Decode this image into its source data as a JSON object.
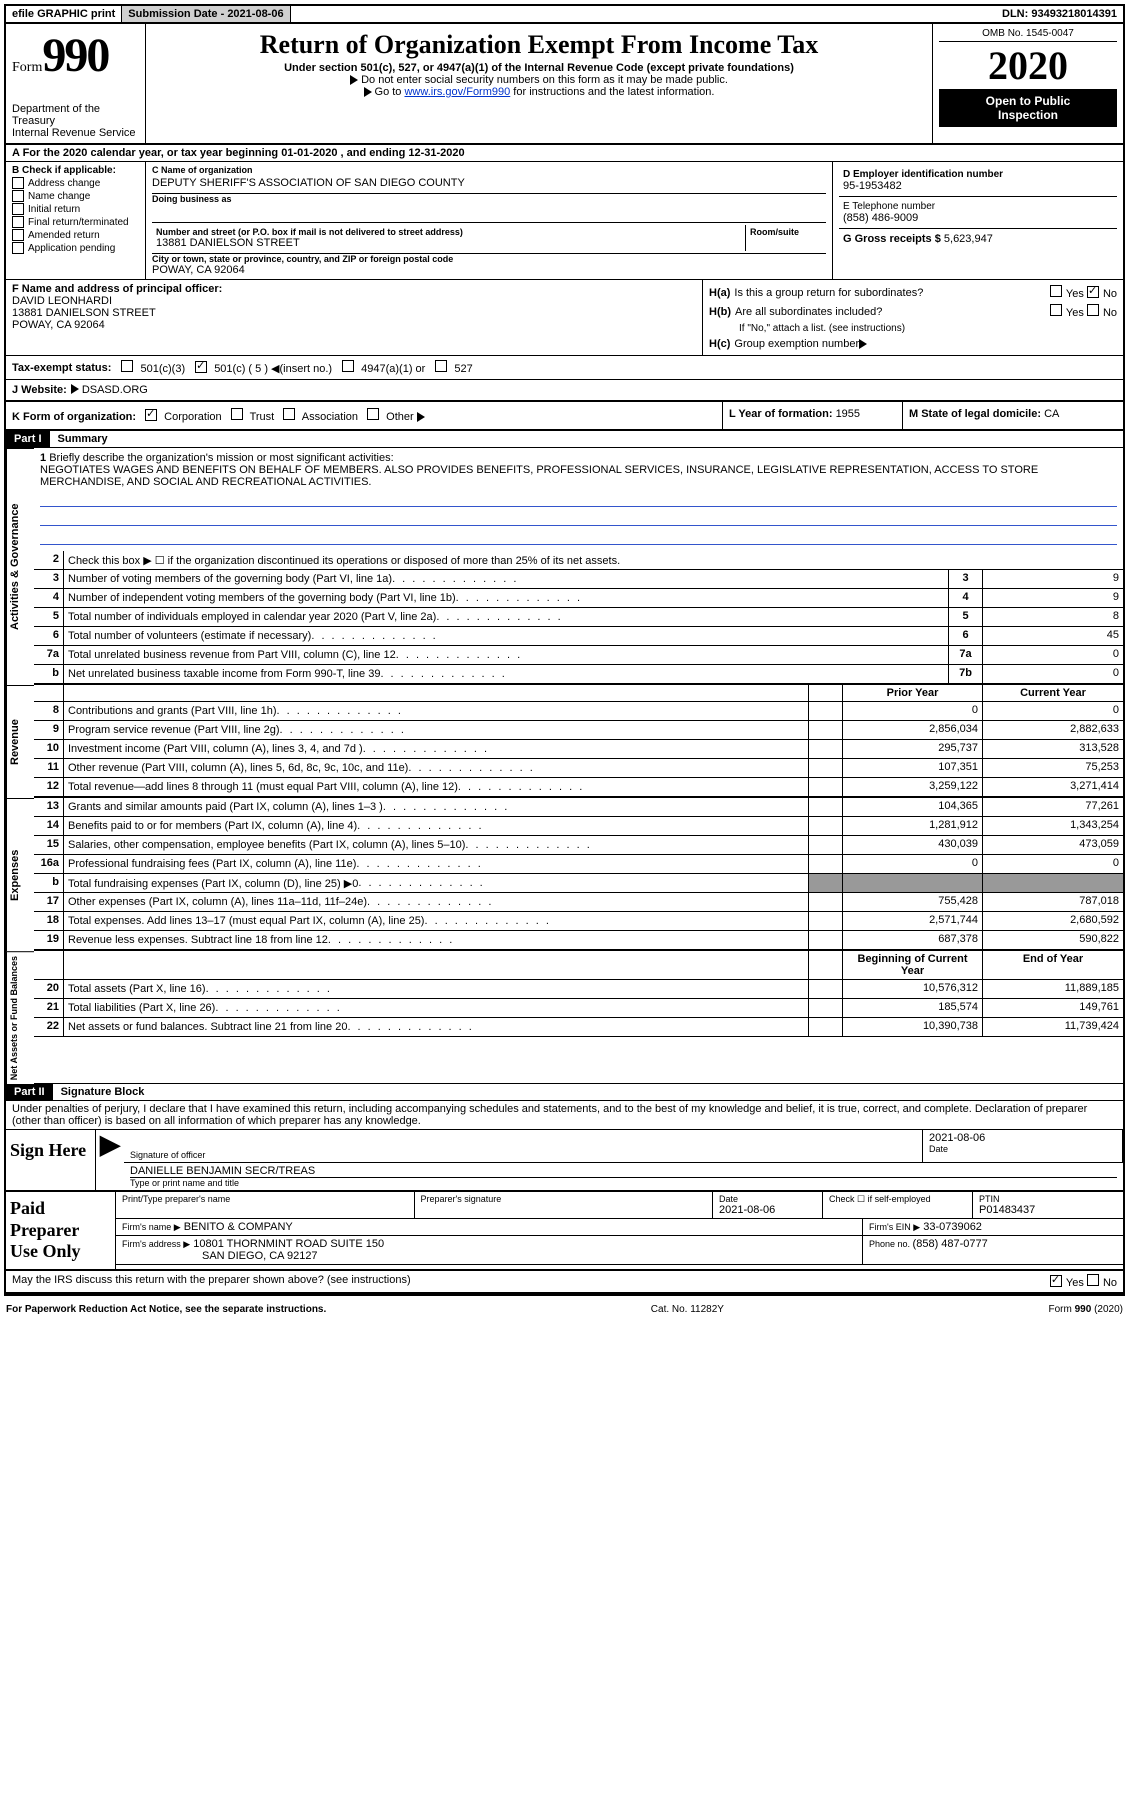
{
  "topbar": {
    "efile": "efile GRAPHIC print",
    "submission": "Submission Date - 2021-08-06",
    "dln": "DLN: 93493218014391"
  },
  "form": {
    "form_label": "Form",
    "number": "990",
    "dept1": "Department of the Treasury",
    "dept2": "Internal Revenue Service"
  },
  "title": {
    "main": "Return of Organization Exempt From Income Tax",
    "sub": "Under section 501(c), 527, or 4947(a)(1) of the Internal Revenue Code (except private foundations)",
    "note1": "Do not enter social security numbers on this form as it may be made public.",
    "note2_pre": "Go to ",
    "note2_link": "www.irs.gov/Form990",
    "note2_post": " for instructions and the latest information."
  },
  "yearbox": {
    "omb": "OMB No. 1545-0047",
    "year": "2020",
    "open1": "Open to Public",
    "open2": "Inspection"
  },
  "rowA": "A   For the 2020 calendar year, or tax year beginning 01-01-2020    , and ending 12-31-2020",
  "B": {
    "label": "B Check if applicable:",
    "items": [
      "Address change",
      "Name change",
      "Initial return",
      "Final return/terminated",
      "Amended return",
      "Application pending"
    ]
  },
  "C": {
    "name_label": "C Name of organization",
    "name": "DEPUTY SHERIFF'S ASSOCIATION OF SAN DIEGO COUNTY",
    "dba_label": "Doing business as",
    "dba": "",
    "street_label": "Number and street (or P.O. box if mail is not delivered to street address)",
    "room_label": "Room/suite",
    "street": "13881 DANIELSON STREET",
    "city_label": "City or town, state or province, country, and ZIP or foreign postal code",
    "city": "POWAY, CA  92064"
  },
  "D": {
    "label": "D Employer identification number",
    "value": "95-1953482"
  },
  "E": {
    "label": "E Telephone number",
    "value": "(858) 486-9009"
  },
  "G": {
    "label": "G Gross receipts $ ",
    "value": "5,623,947"
  },
  "F": {
    "label": "F  Name and address of principal officer:",
    "name": "DAVID LEONHARDI",
    "street": "13881 DANIELSON STREET",
    "city": "POWAY, CA  92064"
  },
  "H": {
    "a_label": "H(a)",
    "a_text": "Is this a group return for subordinates?",
    "a_no_checked": true,
    "b_label": "H(b)",
    "b_text": "Are all subordinates included?",
    "b_note": "If \"No,\" attach a list. (see instructions)",
    "c_label": "H(c)",
    "c_text": "Group exemption number"
  },
  "I": {
    "label": "Tax-exempt status:",
    "opt1": "501(c)(3)",
    "opt2_checked": true,
    "opt2": "501(c) ( 5 )",
    "opt2_hint": "(insert no.)",
    "opt3": "4947(a)(1) or",
    "opt4": "527"
  },
  "J": {
    "label": "J   Website:",
    "value": "DSASD.ORG"
  },
  "K": {
    "label": "K Form of organization:",
    "opts": [
      "Corporation",
      "Trust",
      "Association",
      "Other"
    ],
    "checked_idx": 0
  },
  "L": {
    "label": "L Year of formation: ",
    "value": "1955"
  },
  "M": {
    "label": "M State of legal domicile: ",
    "value": "CA"
  },
  "part1": {
    "header": "Part I",
    "title": "Summary"
  },
  "mission": {
    "num": "1",
    "label": "Briefly describe the organization's mission or most significant activities:",
    "text": "NEGOTIATES WAGES AND BENEFITS ON BEHALF OF MEMBERS. ALSO PROVIDES BENEFITS, PROFESSIONAL SERVICES, INSURANCE, LEGISLATIVE REPRESENTATION, ACCESS TO STORE MERCHANDISE, AND SOCIAL AND RECREATIONAL ACTIVITIES."
  },
  "gov_rows": [
    {
      "n": "2",
      "desc": "Check this box ▶ ☐  if the organization discontinued its operations or disposed of more than 25% of its net assets.",
      "type": "nocols"
    },
    {
      "n": "3",
      "desc": "Number of voting members of the governing body (Part VI, line 1a)",
      "cell": "3",
      "val": "9",
      "type": "small"
    },
    {
      "n": "4",
      "desc": "Number of independent voting members of the governing body (Part VI, line 1b)",
      "cell": "4",
      "val": "9",
      "type": "small"
    },
    {
      "n": "5",
      "desc": "Total number of individuals employed in calendar year 2020 (Part V, line 2a)",
      "cell": "5",
      "val": "8",
      "type": "small"
    },
    {
      "n": "6",
      "desc": "Total number of volunteers (estimate if necessary)",
      "cell": "6",
      "val": "45",
      "type": "small"
    },
    {
      "n": "7a",
      "desc": "Total unrelated business revenue from Part VIII, column (C), line 12",
      "cell": "7a",
      "val": "0",
      "type": "small"
    },
    {
      "n": "b",
      "desc": "Net unrelated business taxable income from Form 990-T, line 39",
      "cell": "7b",
      "val": "0",
      "type": "small"
    }
  ],
  "col_headers": {
    "prior": "Prior Year",
    "current": "Current Year"
  },
  "rev_rows": [
    {
      "n": "8",
      "desc": "Contributions and grants (Part VIII, line 1h)",
      "p": "0",
      "c": "0"
    },
    {
      "n": "9",
      "desc": "Program service revenue (Part VIII, line 2g)",
      "p": "2,856,034",
      "c": "2,882,633"
    },
    {
      "n": "10",
      "desc": "Investment income (Part VIII, column (A), lines 3, 4, and 7d )",
      "p": "295,737",
      "c": "313,528"
    },
    {
      "n": "11",
      "desc": "Other revenue (Part VIII, column (A), lines 5, 6d, 8c, 9c, 10c, and 11e)",
      "p": "107,351",
      "c": "75,253"
    },
    {
      "n": "12",
      "desc": "Total revenue—add lines 8 through 11 (must equal Part VIII, column (A), line 12)",
      "p": "3,259,122",
      "c": "3,271,414"
    }
  ],
  "exp_rows": [
    {
      "n": "13",
      "desc": "Grants and similar amounts paid (Part IX, column (A), lines 1–3 )",
      "p": "104,365",
      "c": "77,261"
    },
    {
      "n": "14",
      "desc": "Benefits paid to or for members (Part IX, column (A), line 4)",
      "p": "1,281,912",
      "c": "1,343,254"
    },
    {
      "n": "15",
      "desc": "Salaries, other compensation, employee benefits (Part IX, column (A), lines 5–10)",
      "p": "430,039",
      "c": "473,059"
    },
    {
      "n": "16a",
      "desc": "Professional fundraising fees (Part IX, column (A), line 11e)",
      "p": "0",
      "c": "0"
    },
    {
      "n": "b",
      "desc": "Total fundraising expenses (Part IX, column (D), line 25) ▶0",
      "p": "",
      "c": "",
      "gray": true
    },
    {
      "n": "17",
      "desc": "Other expenses (Part IX, column (A), lines 11a–11d, 11f–24e)",
      "p": "755,428",
      "c": "787,018"
    },
    {
      "n": "18",
      "desc": "Total expenses. Add lines 13–17 (must equal Part IX, column (A), line 25)",
      "p": "2,571,744",
      "c": "2,680,592"
    },
    {
      "n": "19",
      "desc": "Revenue less expenses. Subtract line 18 from line 12",
      "p": "687,378",
      "c": "590,822"
    }
  ],
  "net_headers": {
    "prior": "Beginning of Current Year",
    "current": "End of Year"
  },
  "net_rows": [
    {
      "n": "20",
      "desc": "Total assets (Part X, line 16)",
      "p": "10,576,312",
      "c": "11,889,185"
    },
    {
      "n": "21",
      "desc": "Total liabilities (Part X, line 26)",
      "p": "185,574",
      "c": "149,761"
    },
    {
      "n": "22",
      "desc": "Net assets or fund balances. Subtract line 21 from line 20",
      "p": "10,390,738",
      "c": "11,739,424"
    }
  ],
  "vert_labels": {
    "gov": "Activities & Governance",
    "rev": "Revenue",
    "exp": "Expenses",
    "net": "Net Assets or Fund Balances"
  },
  "part2": {
    "header": "Part II",
    "title": "Signature Block",
    "declaration": "Under penalties of perjury, I declare that I have examined this return, including accompanying schedules and statements, and to the best of my knowledge and belief, it is true, correct, and complete. Declaration of preparer (other than officer) is based on all information of which preparer has any knowledge."
  },
  "sign": {
    "label": "Sign Here",
    "sig_of_officer": "Signature of officer",
    "date_label": "Date",
    "date": "2021-08-06",
    "name": "DANIELLE BENJAMIN  SECR/TREAS",
    "name_label": "Type or print name and title"
  },
  "paid": {
    "label": "Paid Preparer Use Only",
    "print_label": "Print/Type preparer's name",
    "sig_label": "Preparer's signature",
    "date_label": "Date",
    "date": "2021-08-06",
    "check_label": "Check ☐ if self-employed",
    "ptin_label": "PTIN",
    "ptin": "P01483437",
    "firm_name_label": "Firm's name     ▶",
    "firm_name": "BENITO & COMPANY",
    "firm_ein_label": "Firm's EIN ▶",
    "firm_ein": "33-0739062",
    "firm_addr_label": "Firm's address ▶",
    "firm_addr1": "10801 THORNMINT ROAD SUITE 150",
    "firm_addr2": "SAN DIEGO, CA  92127",
    "phone_label": "Phone no. ",
    "phone": "(858) 487-0777"
  },
  "discuss": {
    "text": "May the IRS discuss this return with the preparer shown above? (see instructions)",
    "yes_checked": true
  },
  "footer": {
    "left": "For Paperwork Reduction Act Notice, see the separate instructions.",
    "mid": "Cat. No. 11282Y",
    "right": "Form 990 (2020)"
  }
}
